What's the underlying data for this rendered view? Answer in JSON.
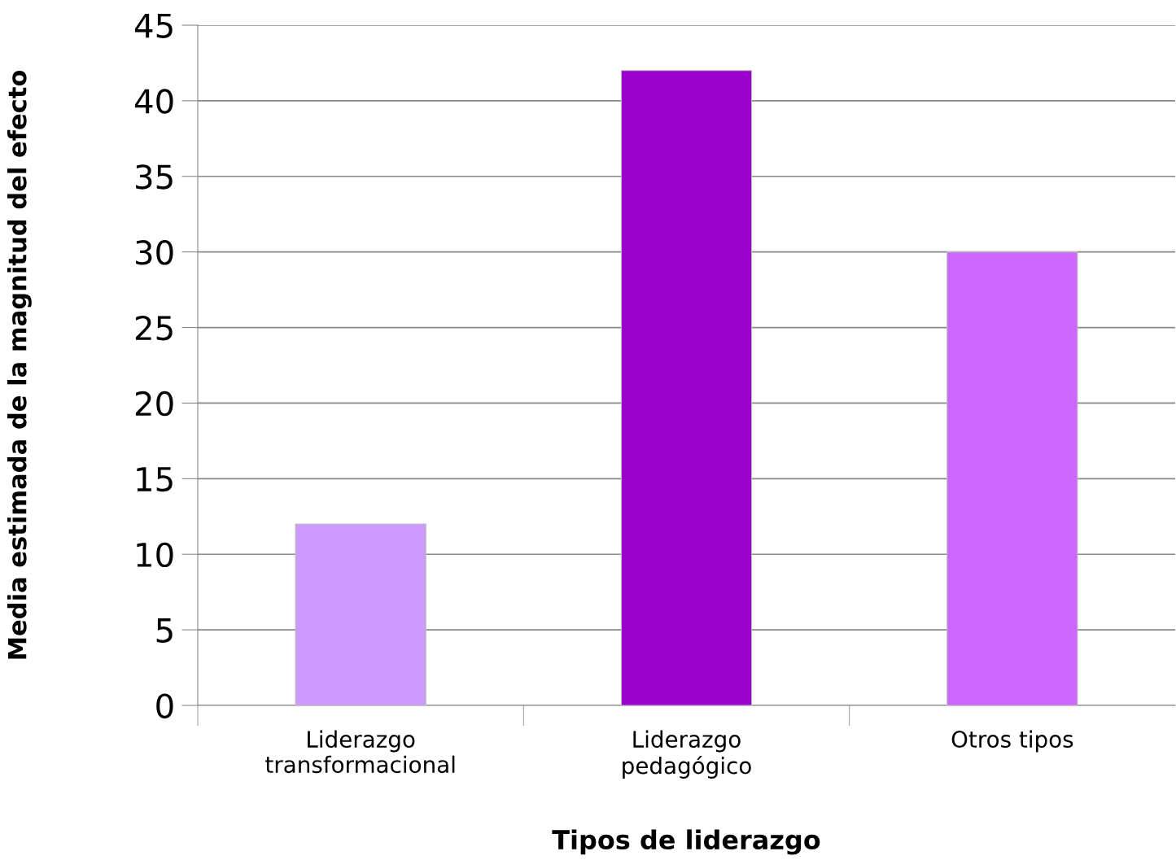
{
  "chart_data": {
    "type": "bar",
    "xlabel": "Tipos de liderazgo",
    "ylabel": "Media estimada de la magnitud del efecto",
    "categories": [
      "Liderazgo\ntransformacional",
      "Liderazgo\npedagógico",
      "Otros tipos"
    ],
    "values": [
      12,
      42,
      30
    ],
    "colors": [
      "#cc99ff",
      "#9900cc",
      "#cc66ff"
    ],
    "ylim": [
      0,
      45
    ],
    "yticks": [
      0,
      5,
      10,
      15,
      20,
      25,
      30,
      35,
      40,
      45
    ],
    "grid": "y"
  }
}
